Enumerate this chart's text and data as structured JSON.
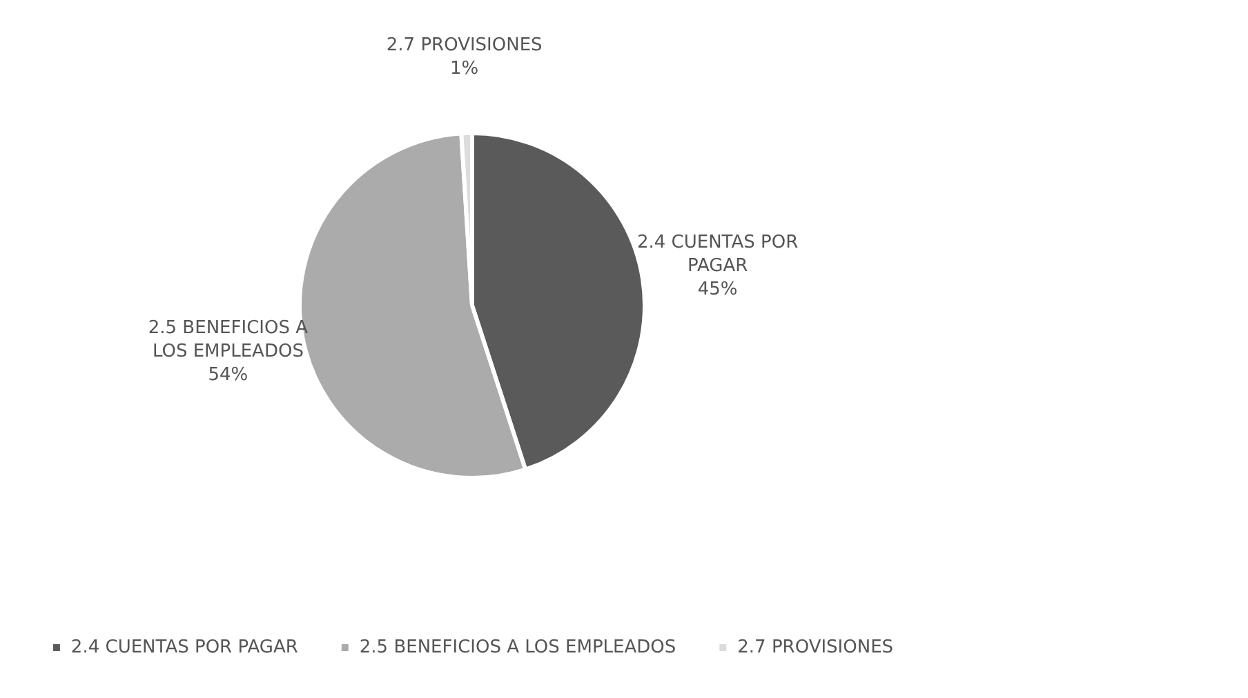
{
  "chart_data": {
    "type": "pie",
    "categories": [
      "2.4 CUENTAS POR PAGAR",
      "2.5 BENEFICIOS A LOS EMPLEADOS",
      "2.7 PROVISIONES"
    ],
    "values": [
      45,
      54,
      1
    ],
    "value_labels": [
      "45%",
      "54%",
      "1%"
    ],
    "colors": [
      "#5a5a5a",
      "#ababab",
      "#dcdcdc"
    ],
    "legend": "bottom"
  }
}
